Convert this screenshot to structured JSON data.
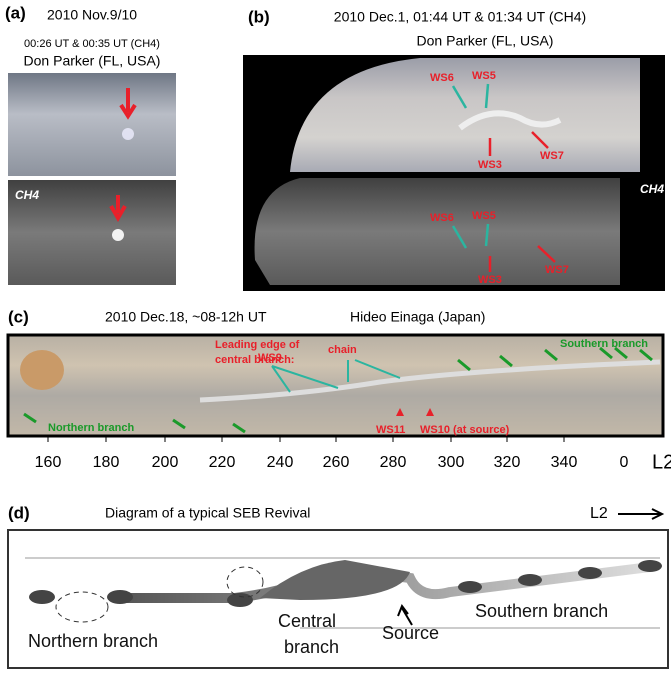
{
  "panels": [
    {
      "label": "(a)",
      "title": "2010 Nov.9/10",
      "subtitle": "00:26 UT & 00:35 UT (CH4)",
      "credit": "Don Parker (FL, USA)",
      "filter": "CH4"
    },
    {
      "label": "(b)",
      "title": "2010 Dec.1, 01:44 UT & 01:34 UT (CH4)",
      "credit": "Don Parker (FL, USA)",
      "filter": "CH4",
      "spots": [
        "WS6",
        "WS5",
        "WS3",
        "WS7"
      ]
    },
    {
      "label": "(c)",
      "title": "2010 Dec.18, ~08-12h UT",
      "credit": "Hideo Einaga (Japan)",
      "annotations": [
        "Leading edge of",
        "central branch:",
        "WS9",
        "chain",
        "Southern branch",
        "Northern branch",
        "WS11",
        "WS10 (at source)"
      ],
      "axis_labels": [
        "160",
        "180",
        "200",
        "220",
        "240",
        "260",
        "280",
        "300",
        "320",
        "340",
        "0",
        "L2"
      ]
    },
    {
      "label": "(d)",
      "title": "Diagram of a typical SEB Revival",
      "direction": "L2",
      "annotations": [
        "Southern branch",
        "Northern branch",
        "Central",
        "branch",
        "Source"
      ]
    }
  ]
}
